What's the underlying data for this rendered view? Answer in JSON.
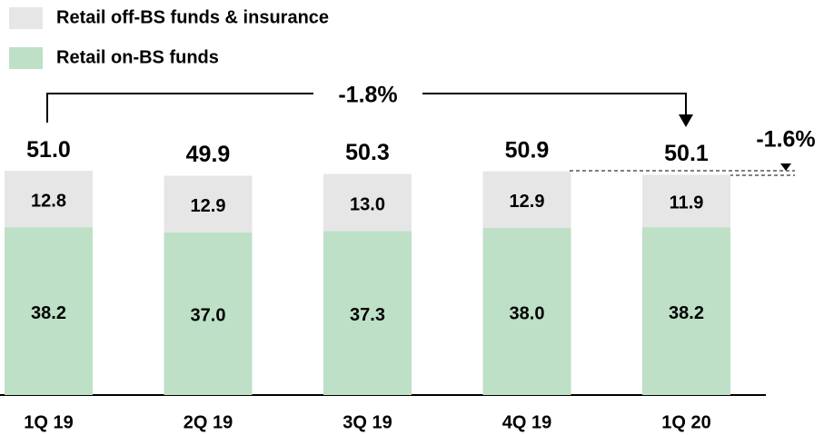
{
  "chart_data": {
    "type": "stacked_bar",
    "categories": [
      "1Q 19",
      "2Q 19",
      "3Q 19",
      "4Q 19",
      "1Q 20"
    ],
    "series": [
      {
        "name": "Retail on-BS funds",
        "color": "#bde0c7",
        "values": [
          38.2,
          37,
          37.3,
          38,
          38.2
        ],
        "value_labels": [
          "38.2",
          "37.0",
          "37.3",
          "38.0",
          "38.2"
        ]
      },
      {
        "name": "Retail off-BS funds & insurance",
        "color": "#e6e6e6",
        "values": [
          12.8,
          12.9,
          13,
          12.9,
          11.9
        ],
        "value_labels": [
          "12.8",
          "12.9",
          "13.0",
          "12.9",
          "11.9"
        ]
      }
    ],
    "totals": [
      51,
      49.9,
      50.3,
      50.9,
      50.1
    ],
    "total_labels": [
      "51.0",
      "49.9",
      "50.3",
      "50.9",
      "50.1"
    ],
    "annotations": [
      "-1.8%",
      "-1.6%"
    ],
    "annotation_color": "#3a9a2a"
  }
}
